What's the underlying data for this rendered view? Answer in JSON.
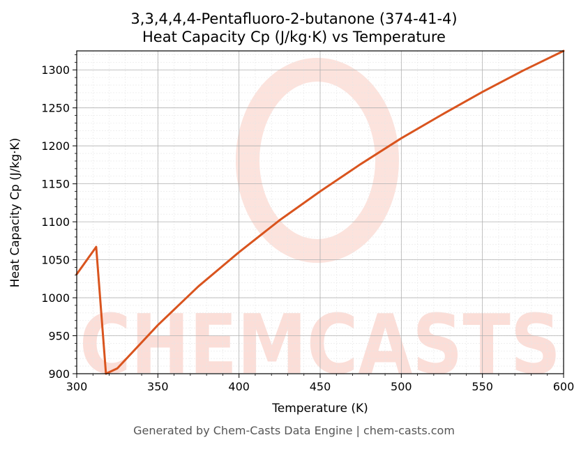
{
  "chart_data": {
    "type": "line",
    "title": "3,3,4,4,4-Pentafluoro-2-butanone (374-41-4)",
    "subtitle": "Heat Capacity Cp (J/kg·K) vs Temperature",
    "xlabel": "Temperature (K)",
    "ylabel": "Heat Capacity Cp (J/kg·K)",
    "xlim": [
      300,
      600
    ],
    "ylim": [
      900,
      1325
    ],
    "xticks": [
      300,
      350,
      400,
      450,
      500,
      550,
      600
    ],
    "yticks": [
      900,
      950,
      1000,
      1050,
      1100,
      1150,
      1200,
      1250,
      1300
    ],
    "grid": true,
    "series": [
      {
        "color": "#d9541e",
        "x": [
          300,
          312,
          318,
          325,
          350,
          375,
          400,
          425,
          450,
          475,
          500,
          525,
          550,
          575,
          600
        ],
        "y": [
          1031,
          1067,
          900,
          907,
          964,
          1015,
          1060,
          1102,
          1140,
          1176,
          1210,
          1241,
          1271,
          1299,
          1325
        ]
      }
    ]
  },
  "watermark": {
    "text": "CHEMCASTS",
    "color": "#fbd9d2"
  },
  "footer": "Generated by Chem-Casts Data Engine | chem-casts.com"
}
